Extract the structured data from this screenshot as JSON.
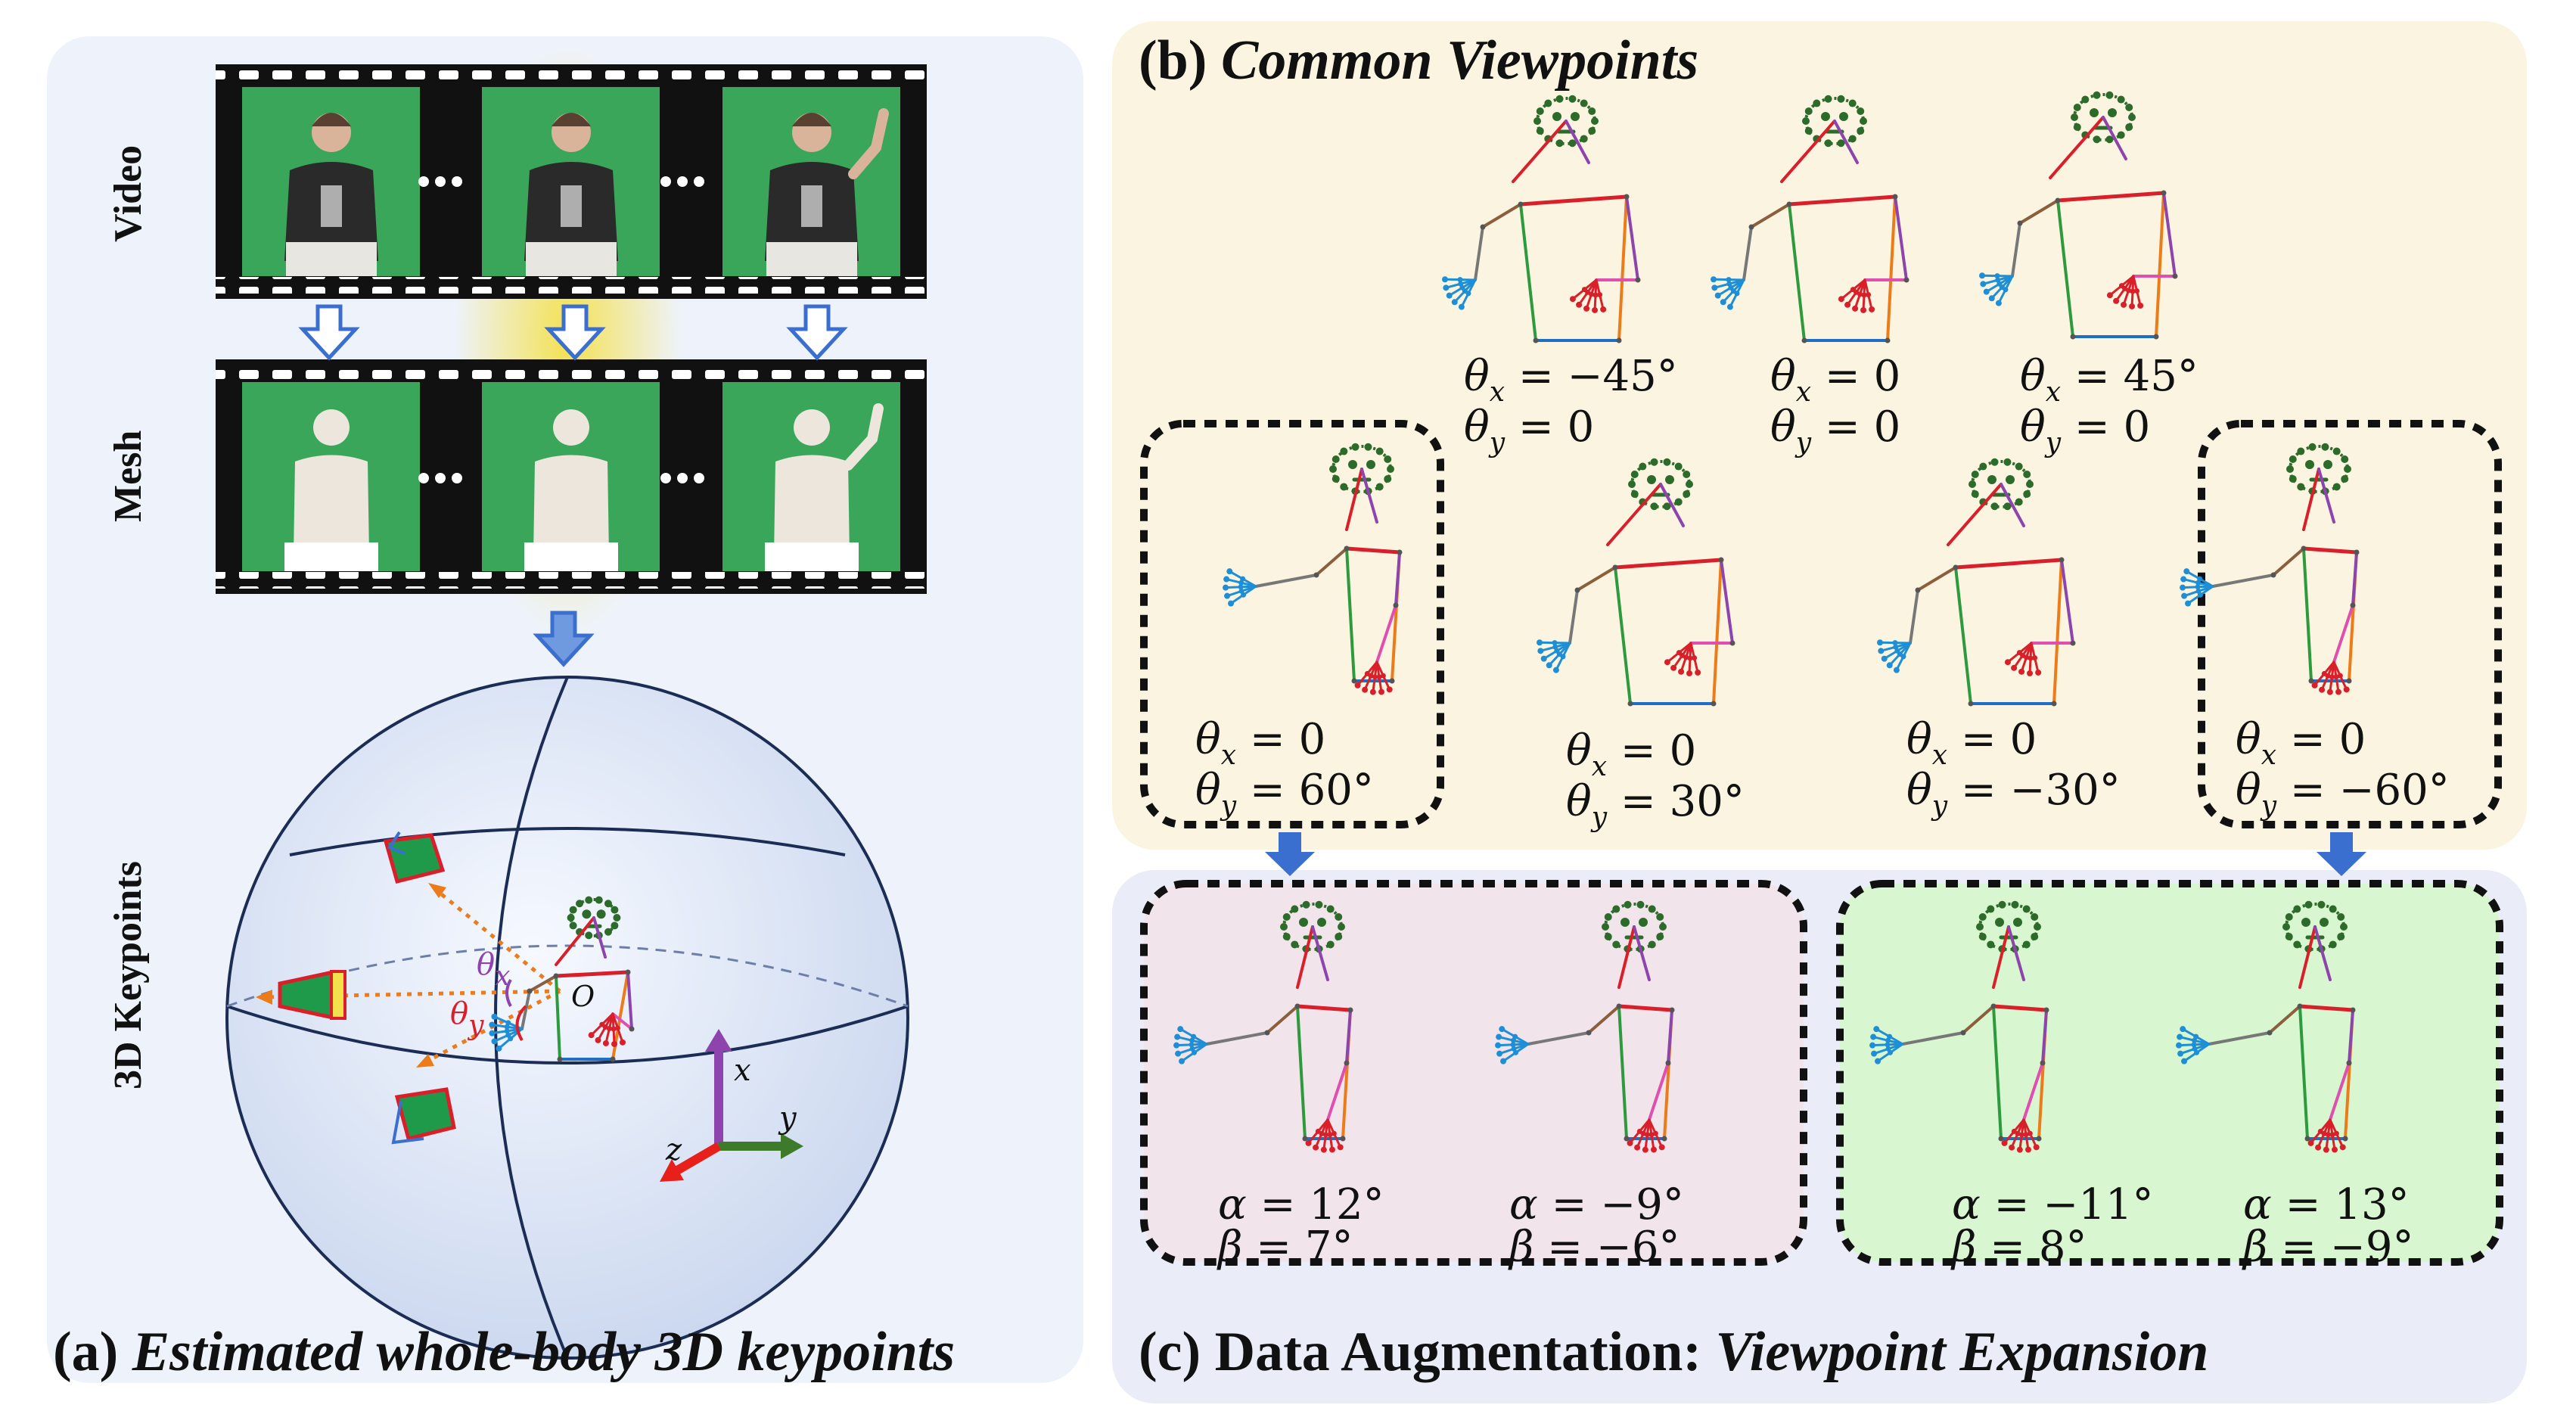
{
  "panel_a": {
    "caption_prefix": "(a) ",
    "caption_text": "Estimated whole-body 3D keypoints",
    "row_labels": [
      "Video",
      "Mesh",
      "3D Keypoints"
    ],
    "sphere_labels": {
      "theta_x": "θ",
      "theta_x_sub": "x",
      "theta_y": "θ",
      "theta_y_sub": "y",
      "origin": "O"
    },
    "axis_labels": {
      "x": "x",
      "y": "y",
      "z": "z"
    },
    "colors": {
      "axis_x": "#8e44ad",
      "axis_y": "#3d7a2a",
      "axis_z": "#e8201c",
      "green_screen": "#3aa65a",
      "highlight": "#f4e04a"
    }
  },
  "panel_b": {
    "caption_prefix": "(b) ",
    "caption_text": "Common Viewpoints",
    "views": [
      {
        "tx": "−45°",
        "ty": "0"
      },
      {
        "tx": "0",
        "ty": "0"
      },
      {
        "tx": "45°",
        "ty": "0"
      },
      {
        "tx": "0",
        "ty": "60°"
      },
      {
        "tx": "0",
        "ty": "30°"
      },
      {
        "tx": "0",
        "ty": "−30°"
      },
      {
        "tx": "0",
        "ty": "−60°"
      }
    ]
  },
  "panel_c": {
    "caption_prefix": "(c) Data Augmentation: ",
    "caption_text": "Viewpoint Expansion",
    "views": [
      {
        "a": "12°",
        "b": "7°"
      },
      {
        "a": "−9°",
        "b": "−6°"
      },
      {
        "a": "−11°",
        "b": "8°"
      },
      {
        "a": "13°",
        "b": "−9°"
      }
    ],
    "colors": {
      "left_box": "#f1e4ea",
      "right_box": "#d8f6cf",
      "arrow": "#3a6fd0"
    }
  }
}
